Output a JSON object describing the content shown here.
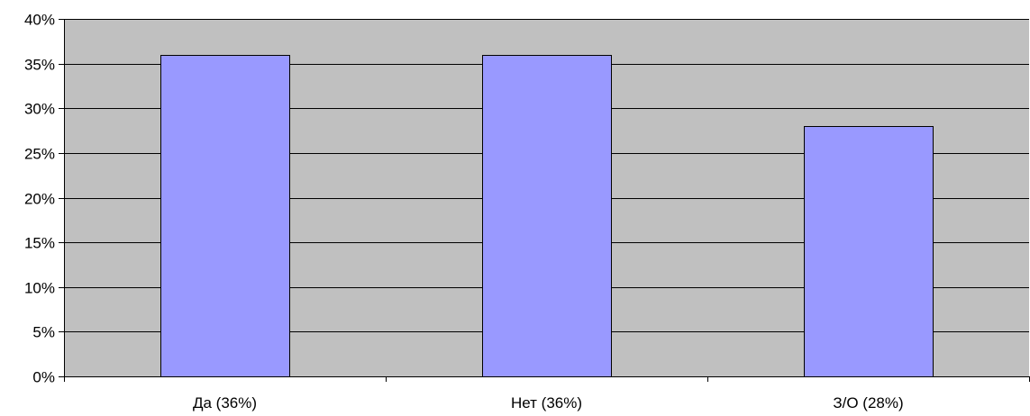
{
  "colors": {
    "plot_background": "#c0c0c0",
    "bar_fill": "#9999ff",
    "bar_stroke": "#000000",
    "gridline": "#000000",
    "axis": "#000000"
  },
  "chart_data": {
    "type": "bar",
    "title": "",
    "xlabel": "",
    "ylabel": "",
    "categories": [
      "Да (36%)",
      "Нет (36%)",
      "З/О (28%)"
    ],
    "values": [
      36,
      36,
      28
    ],
    "value_unit": "%",
    "ylim": [
      0,
      40
    ],
    "y_ticks": [
      0,
      5,
      10,
      15,
      20,
      25,
      30,
      35,
      40
    ],
    "y_tick_labels": [
      "0%",
      "5%",
      "10%",
      "15%",
      "20%",
      "25%",
      "30%",
      "35%",
      "40%"
    ],
    "grid": true,
    "legend": "none"
  }
}
